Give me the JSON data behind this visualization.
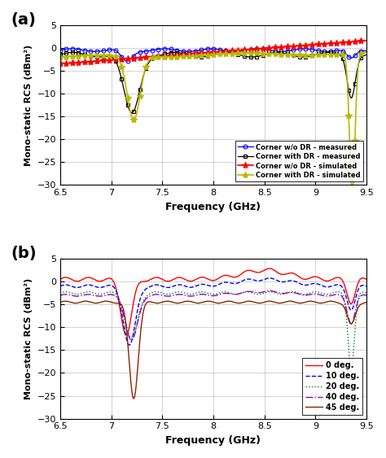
{
  "xlim": [
    6.5,
    9.5
  ],
  "ylim_a": [
    -30,
    5
  ],
  "ylim_b": [
    -30,
    5
  ],
  "yticks_a": [
    -30,
    -25,
    -20,
    -15,
    -10,
    -5,
    0,
    5
  ],
  "yticks_b": [
    -30,
    -25,
    -20,
    -15,
    -10,
    -5,
    0,
    5
  ],
  "xticks": [
    6.5,
    7,
    7.5,
    8,
    8.5,
    9,
    9.5
  ],
  "xlabel": "Frequency (GHz)",
  "ylabel": "Mono-static RCS (dBm²)",
  "panel_a_label": "(a)",
  "panel_b_label": "(b)",
  "background": "white"
}
